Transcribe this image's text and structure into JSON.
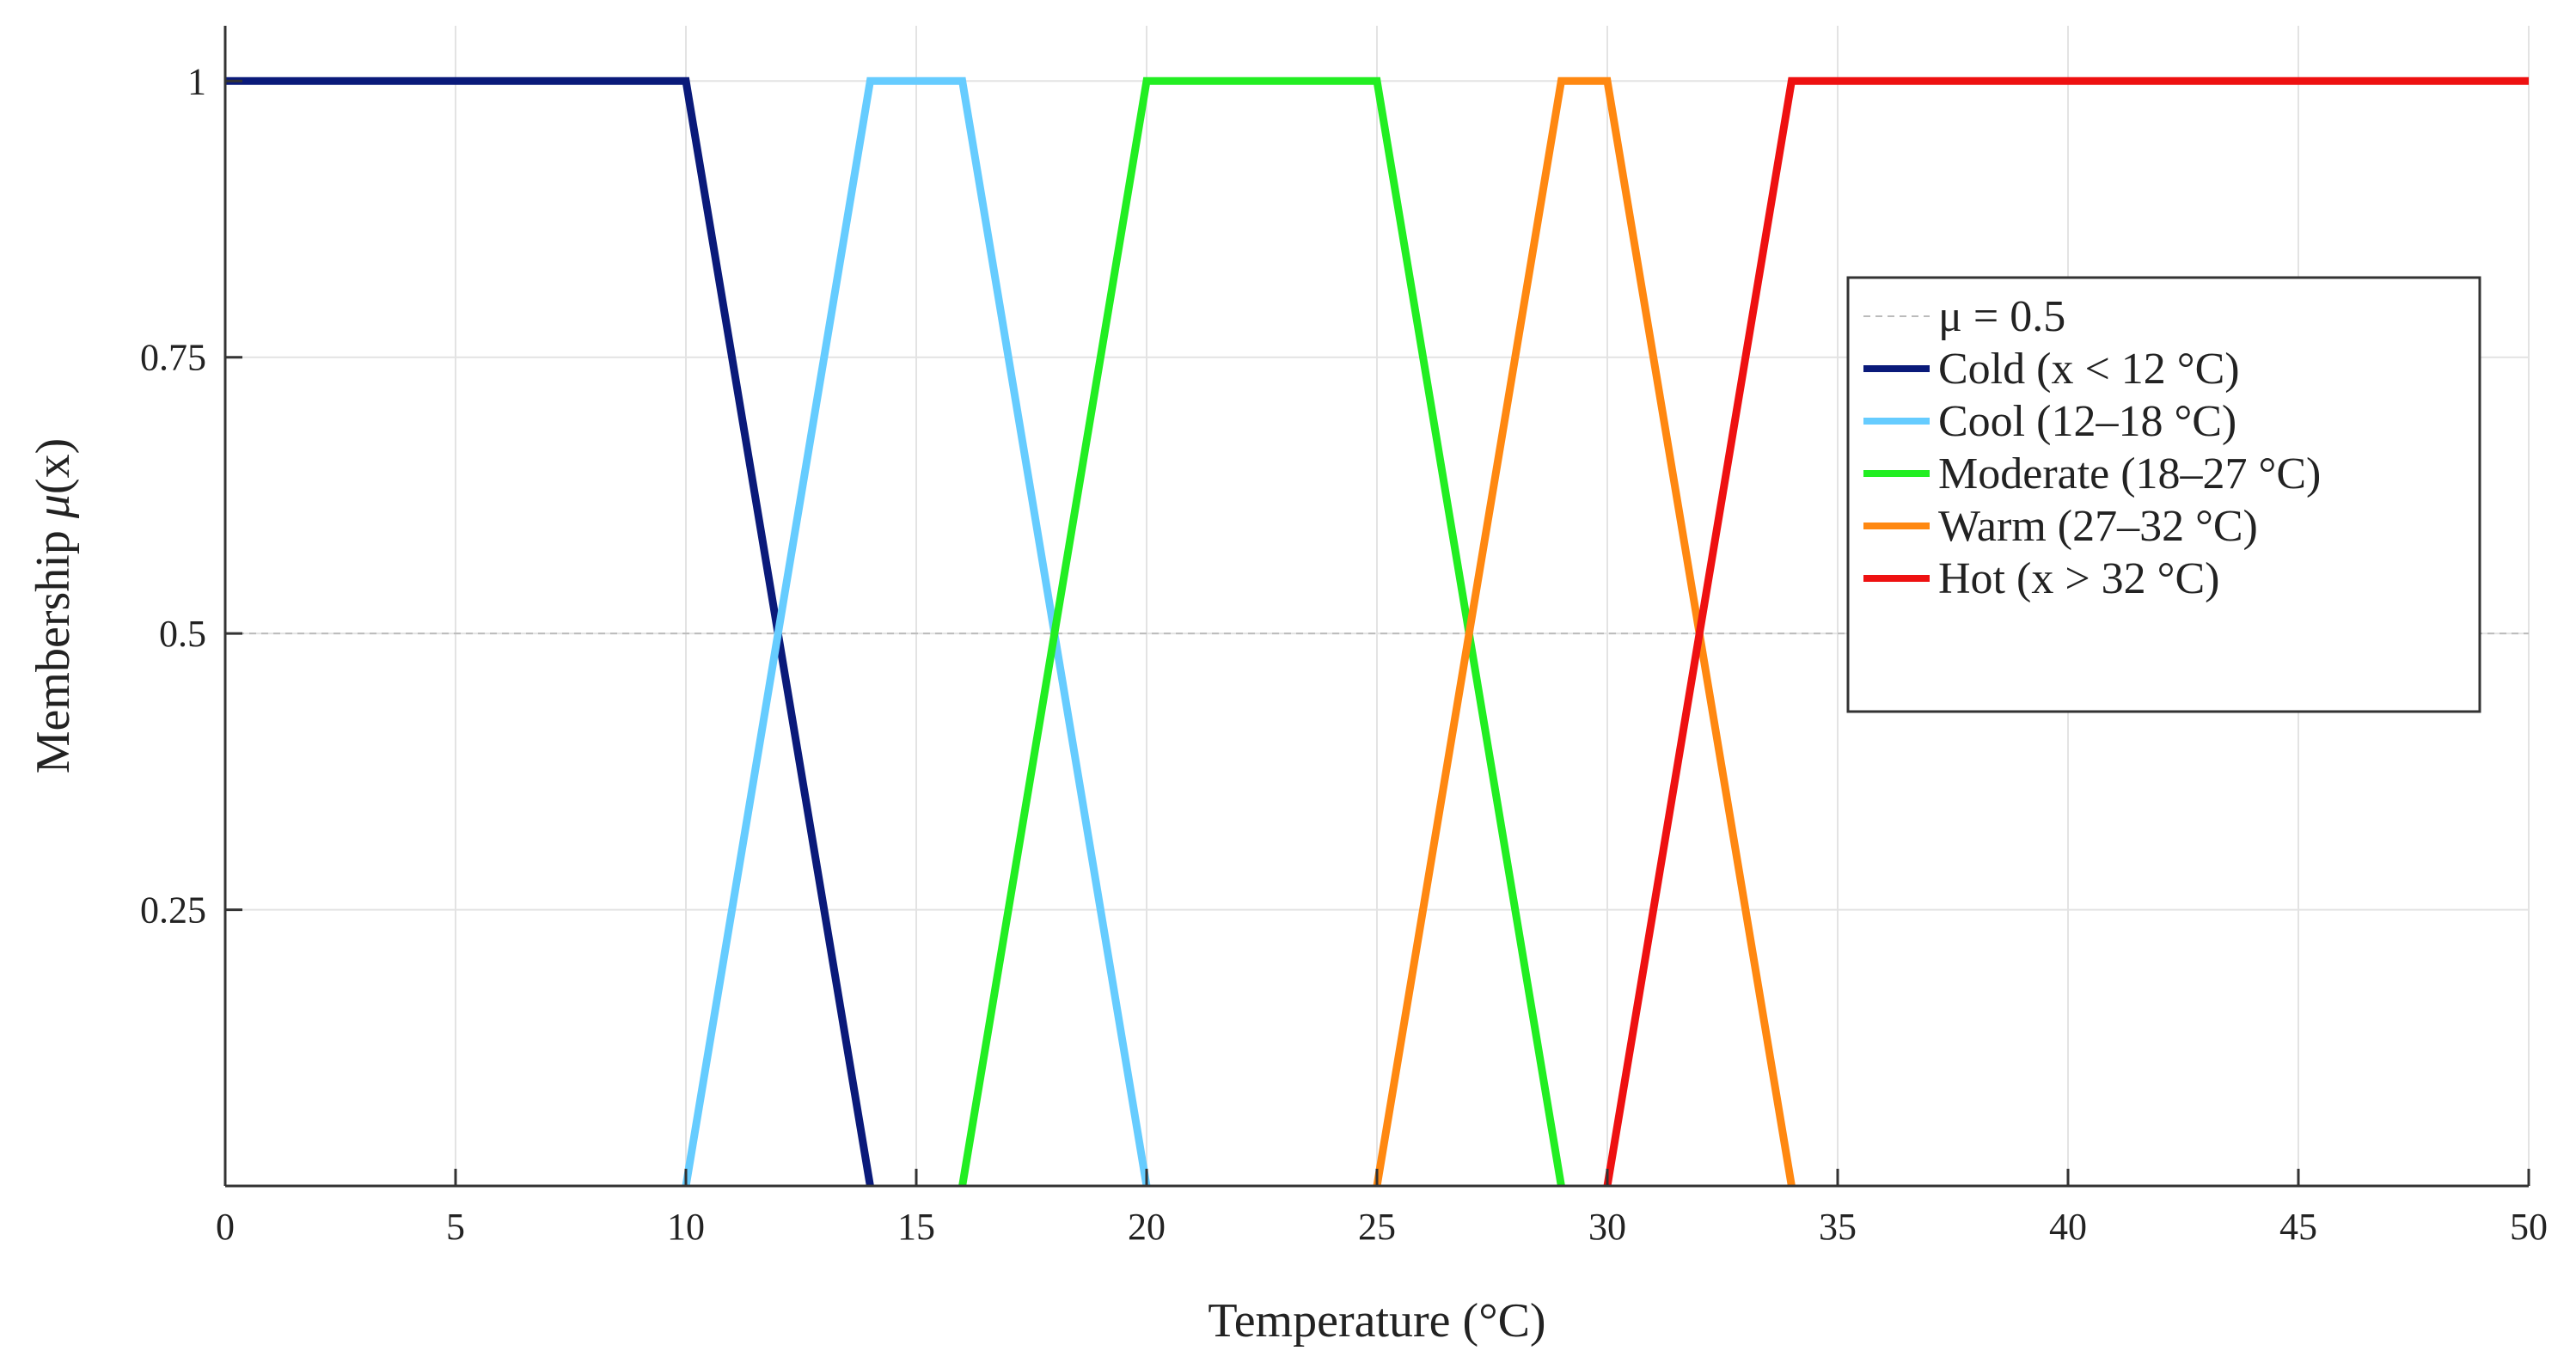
{
  "chart_data": {
    "type": "line",
    "xlabel": "Temperature (°C)",
    "ylabel_prefix": "Membership ",
    "ylabel_mu": "μ",
    "ylabel_suffix": "(x)",
    "xlim": [
      0,
      50
    ],
    "ylim": [
      0,
      1.05
    ],
    "xticks": [
      0,
      5,
      10,
      15,
      20,
      25,
      30,
      35,
      40,
      45,
      50
    ],
    "xtick_labels": [
      "0",
      "5",
      "10",
      "15",
      "20",
      "25",
      "30",
      "35",
      "40",
      "45",
      "50"
    ],
    "yticks": [
      0.25,
      0.5,
      0.75,
      1
    ],
    "ytick_labels": [
      "0.25",
      "0.5",
      "0.75",
      "1"
    ],
    "grid": true,
    "legend_position": "upper right",
    "reference_line": {
      "name": "μ = 0.5",
      "y": 0.5,
      "color": "#bbbbbb",
      "style": "dashed"
    },
    "series": [
      {
        "name": "Cold (x < 12 °C)",
        "color": "#0a1a7a",
        "x": [
          0,
          10,
          14
        ],
        "y": [
          1,
          1,
          0
        ]
      },
      {
        "name": "Cool (12–18 °C)",
        "color": "#66ccff",
        "x": [
          10,
          14,
          16,
          20
        ],
        "y": [
          0,
          1,
          1,
          0
        ]
      },
      {
        "name": "Moderate (18–27 °C)",
        "color": "#22ee22",
        "x": [
          16,
          20,
          25,
          29
        ],
        "y": [
          0,
          1,
          1,
          0
        ]
      },
      {
        "name": "Warm (27–32 °C)",
        "color": "#ff8811",
        "x": [
          25,
          29,
          30,
          34
        ],
        "y": [
          0,
          1,
          1,
          0
        ]
      },
      {
        "name": "Hot (x > 32 °C)",
        "color": "#ee1111",
        "x": [
          30,
          34,
          50
        ],
        "y": [
          0,
          1,
          1
        ]
      }
    ]
  }
}
